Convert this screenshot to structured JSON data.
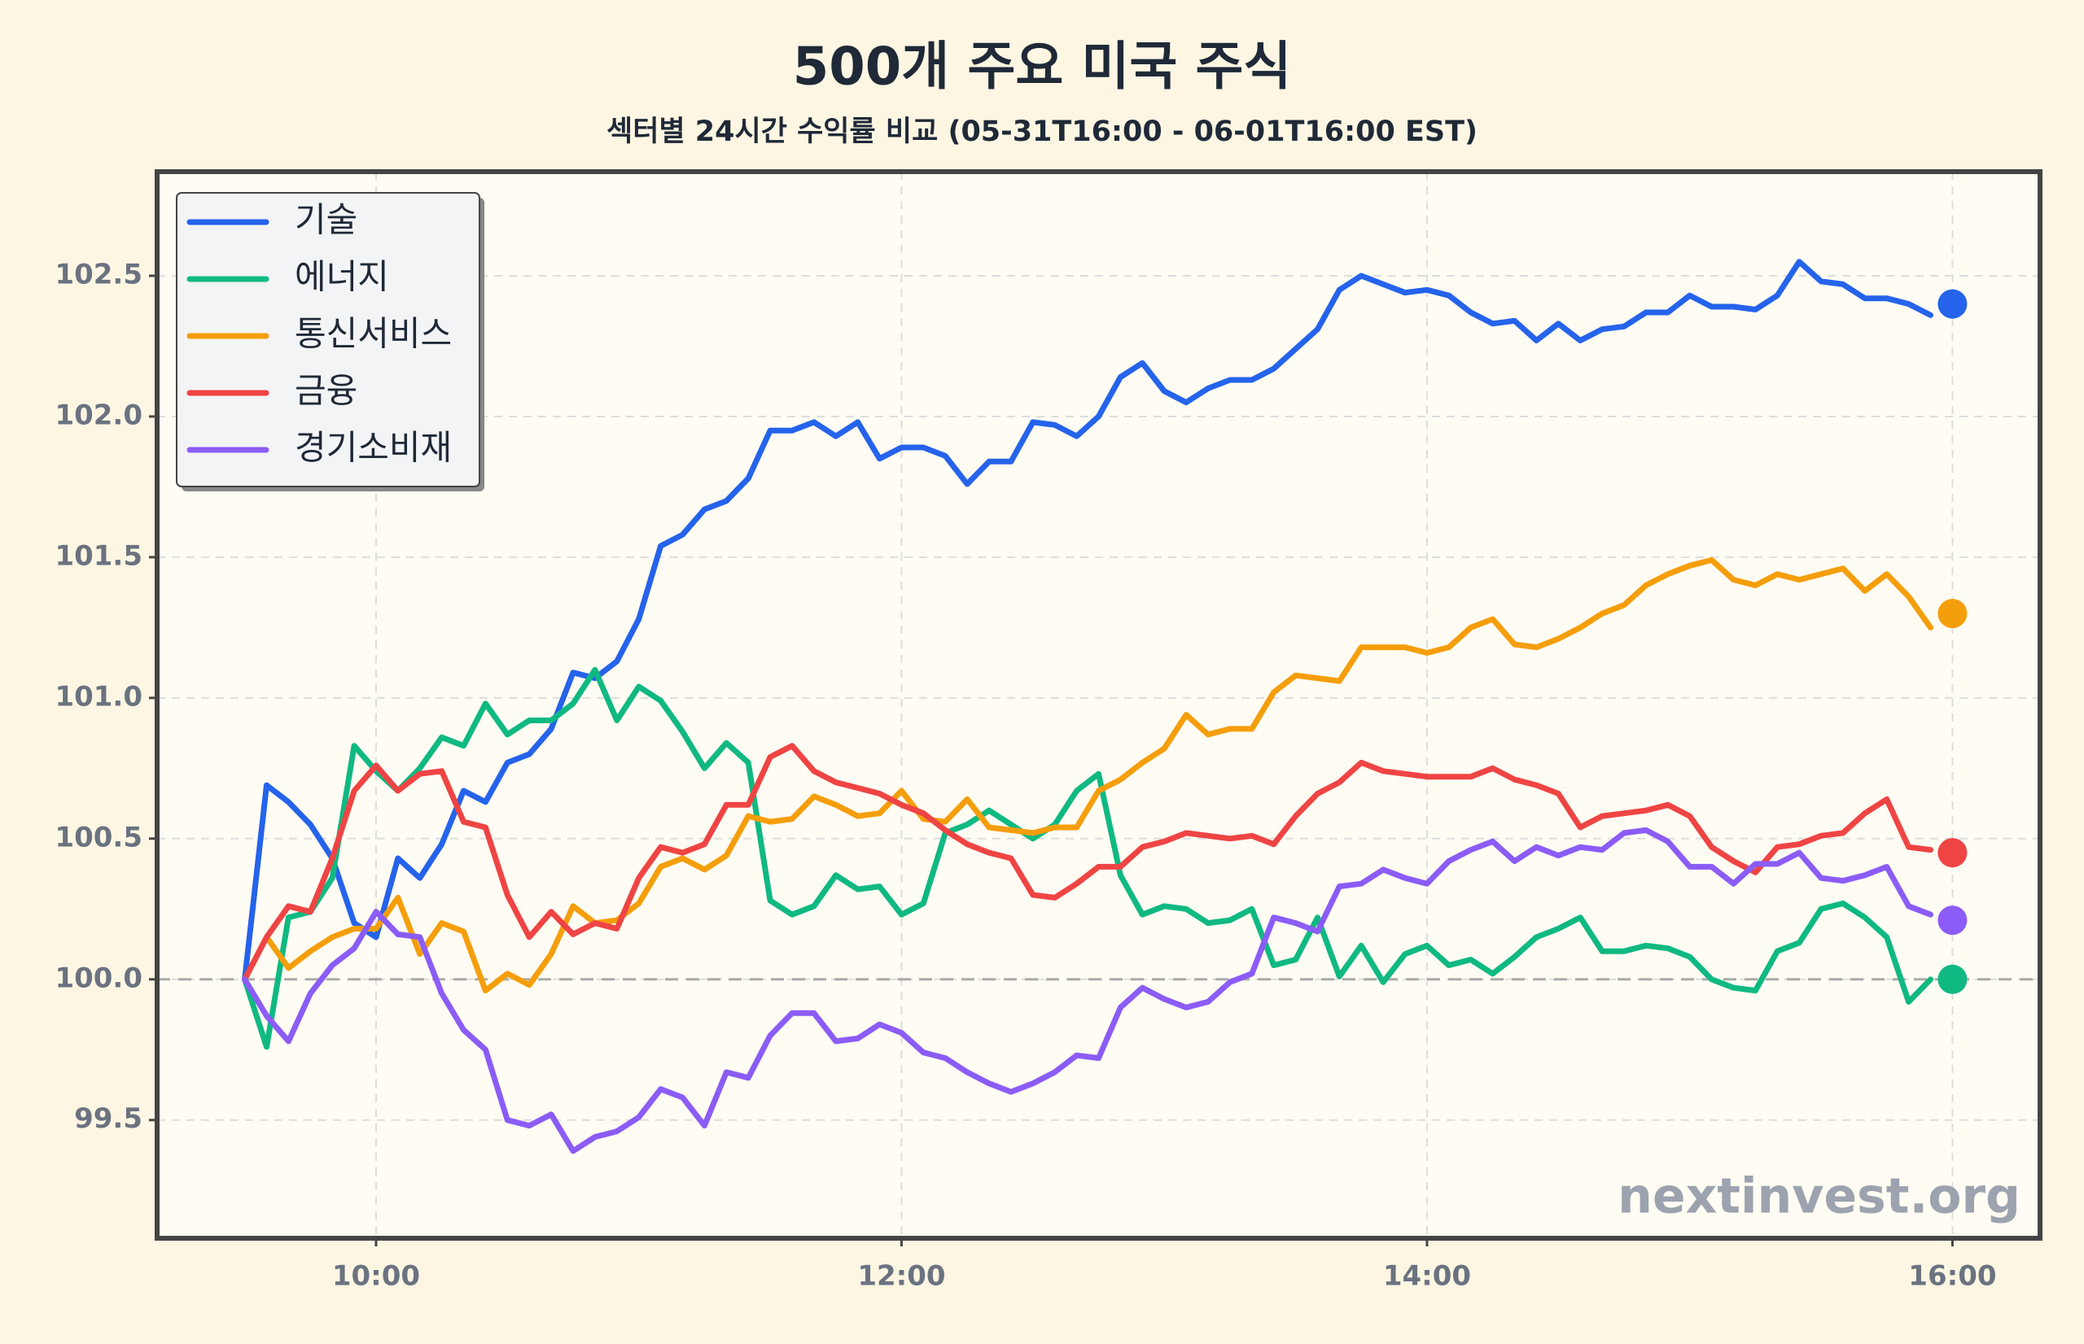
{
  "chart_data": {
    "type": "line",
    "title": "500개 주요 미국 주식",
    "subtitle": "섹터별 24시간 수익률 비교 (05-31T16:00 - 06-01T16:00 EST)",
    "watermark": "nextinvest.org",
    "x": [
      570,
      575,
      580,
      585,
      590,
      595,
      600,
      605,
      610,
      615,
      620,
      625,
      630,
      635,
      640,
      645,
      650,
      655,
      660,
      665,
      670,
      675,
      680,
      685,
      690,
      695,
      700,
      705,
      710,
      715,
      720,
      725,
      730,
      735,
      740,
      745,
      750,
      755,
      760,
      765,
      770,
      775,
      780,
      785,
      790,
      795,
      800,
      805,
      810,
      815,
      820,
      825,
      830,
      835,
      840,
      845,
      850,
      855,
      860,
      865,
      870,
      875,
      880,
      885,
      890,
      895,
      900,
      905,
      910,
      915,
      920,
      925,
      930,
      935,
      940,
      945,
      950,
      955
    ],
    "xlim": [
      550,
      980
    ],
    "xticks": [
      {
        "value": 600,
        "label": "10:00"
      },
      {
        "value": 720,
        "label": "12:00"
      },
      {
        "value": 840,
        "label": "14:00"
      },
      {
        "value": 960,
        "label": "16:00"
      }
    ],
    "ylim": [
      99.08,
      102.87
    ],
    "yticks": [
      {
        "value": 99.5,
        "label": "99.5"
      },
      {
        "value": 100,
        "label": "100.0"
      },
      {
        "value": 100.5,
        "label": "100.5"
      },
      {
        "value": 101,
        "label": "101.0"
      },
      {
        "value": 101.5,
        "label": "101.5"
      },
      {
        "value": 102,
        "label": "102.0"
      },
      {
        "value": 102.5,
        "label": "102.5"
      }
    ],
    "grid": true,
    "baseline": 100,
    "legend": "upper left",
    "series": [
      {
        "name": "기술",
        "color": "#2563eb",
        "end_value": 102.4,
        "values": [
          100,
          100.69,
          100.63,
          100.55,
          100.43,
          100.2,
          100.15,
          100.43,
          100.36,
          100.48,
          100.67,
          100.63,
          100.77,
          100.8,
          100.89,
          101.09,
          101.07,
          101.13,
          101.28,
          101.54,
          101.58,
          101.67,
          101.7,
          101.78,
          101.95,
          101.95,
          101.98,
          101.93,
          101.98,
          101.85,
          101.89,
          101.89,
          101.86,
          101.76,
          101.84,
          101.84,
          101.98,
          101.97,
          101.93,
          102.0,
          102.14,
          102.19,
          102.09,
          102.05,
          102.1,
          102.13,
          102.13,
          102.17,
          102.24,
          102.31,
          102.45,
          102.5,
          102.47,
          102.44,
          102.45,
          102.43,
          102.37,
          102.33,
          102.34,
          102.27,
          102.33,
          102.27,
          102.31,
          102.32,
          102.37,
          102.37,
          102.43,
          102.39,
          102.39,
          102.38,
          102.43,
          102.55,
          102.48,
          102.47,
          102.42,
          102.42,
          102.4,
          102.36
        ]
      },
      {
        "name": "에너지",
        "color": "#10b981",
        "end_value": 100.0,
        "values": [
          100,
          99.76,
          100.22,
          100.24,
          100.36,
          100.83,
          100.74,
          100.67,
          100.75,
          100.86,
          100.83,
          100.98,
          100.87,
          100.92,
          100.92,
          100.98,
          101.1,
          100.92,
          101.04,
          100.99,
          100.88,
          100.75,
          100.84,
          100.77,
          100.28,
          100.23,
          100.26,
          100.37,
          100.32,
          100.33,
          100.23,
          100.27,
          100.52,
          100.55,
          100.6,
          100.55,
          100.5,
          100.55,
          100.67,
          100.73,
          100.37,
          100.23,
          100.26,
          100.25,
          100.2,
          100.21,
          100.25,
          100.05,
          100.07,
          100.22,
          100.01,
          100.12,
          99.99,
          100.09,
          100.12,
          100.05,
          100.07,
          100.02,
          100.08,
          100.15,
          100.18,
          100.22,
          100.1,
          100.1,
          100.12,
          100.11,
          100.08,
          100.0,
          99.97,
          99.96,
          100.1,
          100.13,
          100.25,
          100.27,
          100.22,
          100.15,
          99.92,
          100.0
        ]
      },
      {
        "name": "통신서비스",
        "color": "#f59e0b",
        "end_value": 101.3,
        "values": [
          100,
          100.15,
          100.04,
          100.1,
          100.15,
          100.18,
          100.18,
          100.29,
          100.09,
          100.2,
          100.17,
          99.96,
          100.02,
          99.98,
          100.09,
          100.26,
          100.2,
          100.21,
          100.27,
          100.4,
          100.43,
          100.39,
          100.44,
          100.58,
          100.56,
          100.57,
          100.65,
          100.62,
          100.58,
          100.59,
          100.67,
          100.57,
          100.56,
          100.64,
          100.54,
          100.53,
          100.52,
          100.54,
          100.54,
          100.67,
          100.71,
          100.77,
          100.82,
          100.94,
          100.87,
          100.89,
          100.89,
          101.02,
          101.08,
          101.07,
          101.06,
          101.18,
          101.18,
          101.18,
          101.16,
          101.18,
          101.25,
          101.28,
          101.19,
          101.18,
          101.21,
          101.25,
          101.3,
          101.33,
          101.4,
          101.44,
          101.47,
          101.49,
          101.42,
          101.4,
          101.44,
          101.42,
          101.44,
          101.46,
          101.38,
          101.44,
          101.36,
          101.25
        ]
      },
      {
        "name": "금융",
        "color": "#ef4444",
        "end_value": 100.45,
        "values": [
          100,
          100.15,
          100.26,
          100.24,
          100.43,
          100.67,
          100.76,
          100.67,
          100.73,
          100.74,
          100.56,
          100.54,
          100.3,
          100.15,
          100.24,
          100.16,
          100.2,
          100.18,
          100.36,
          100.47,
          100.45,
          100.48,
          100.62,
          100.62,
          100.79,
          100.83,
          100.74,
          100.7,
          100.68,
          100.66,
          100.62,
          100.59,
          100.53,
          100.48,
          100.45,
          100.43,
          100.3,
          100.29,
          100.34,
          100.4,
          100.4,
          100.47,
          100.49,
          100.52,
          100.51,
          100.5,
          100.51,
          100.48,
          100.58,
          100.66,
          100.7,
          100.77,
          100.74,
          100.73,
          100.72,
          100.72,
          100.72,
          100.75,
          100.71,
          100.69,
          100.66,
          100.54,
          100.58,
          100.59,
          100.6,
          100.62,
          100.58,
          100.47,
          100.42,
          100.38,
          100.47,
          100.48,
          100.51,
          100.52,
          100.59,
          100.64,
          100.47,
          100.46
        ]
      },
      {
        "name": "경기소비재",
        "color": "#8b5cf6",
        "end_value": 100.21,
        "values": [
          100,
          99.87,
          99.78,
          99.95,
          100.05,
          100.11,
          100.24,
          100.16,
          100.15,
          99.95,
          99.82,
          99.75,
          99.5,
          99.48,
          99.52,
          99.39,
          99.44,
          99.46,
          99.51,
          99.61,
          99.58,
          99.48,
          99.67,
          99.65,
          99.8,
          99.88,
          99.88,
          99.78,
          99.79,
          99.84,
          99.81,
          99.74,
          99.72,
          99.67,
          99.63,
          99.6,
          99.63,
          99.67,
          99.73,
          99.72,
          99.9,
          99.97,
          99.93,
          99.9,
          99.92,
          99.99,
          100.02,
          100.22,
          100.2,
          100.17,
          100.33,
          100.34,
          100.39,
          100.36,
          100.34,
          100.42,
          100.46,
          100.49,
          100.42,
          100.47,
          100.44,
          100.47,
          100.46,
          100.52,
          100.53,
          100.49,
          100.4,
          100.4,
          100.34,
          100.41,
          100.41,
          100.45,
          100.36,
          100.35,
          100.37,
          100.4,
          100.26,
          100.23
        ]
      }
    ]
  }
}
